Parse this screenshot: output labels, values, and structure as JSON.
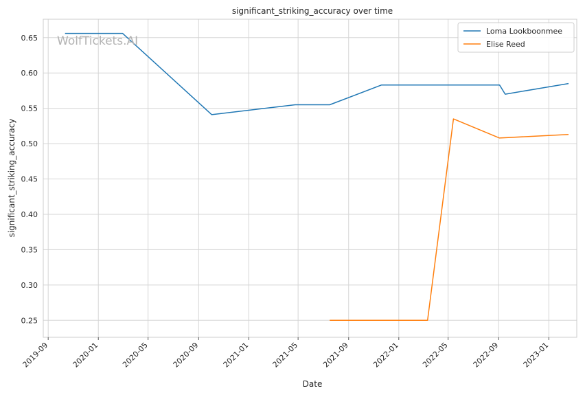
{
  "chart_data": {
    "type": "line",
    "title": "significant_striking_accuracy over time",
    "xlabel": "Date",
    "ylabel": "significant_striking_accuracy",
    "watermark": "WolfTickets.AI",
    "xlim": [
      "2019-08-20",
      "2023-03-10"
    ],
    "ylim": [
      0.226,
      0.676
    ],
    "x_ticks": [
      "2019-09",
      "2020-01",
      "2020-05",
      "2020-09",
      "2021-01",
      "2021-05",
      "2021-09",
      "2022-01",
      "2022-05",
      "2022-09",
      "2023-01"
    ],
    "y_ticks": [
      0.25,
      0.3,
      0.35,
      0.4,
      0.45,
      0.5,
      0.55,
      0.6,
      0.65
    ],
    "y_tick_labels": [
      "0.25",
      "0.30",
      "0.35",
      "0.40",
      "0.45",
      "0.50",
      "0.55",
      "0.60",
      "0.65"
    ],
    "grid": true,
    "legend_position": "top-right",
    "series": [
      {
        "name": "Loma Lookboonmee",
        "color": "#1f77b4",
        "points": [
          {
            "x": "2019-10-12",
            "y": 0.656
          },
          {
            "x": "2020-02-29",
            "y": 0.656
          },
          {
            "x": "2020-10-03",
            "y": 0.541
          },
          {
            "x": "2021-04-24",
            "y": 0.555
          },
          {
            "x": "2021-07-17",
            "y": 0.555
          },
          {
            "x": "2021-11-20",
            "y": 0.583
          },
          {
            "x": "2022-09-03",
            "y": 0.583
          },
          {
            "x": "2022-09-17",
            "y": 0.57
          },
          {
            "x": "2023-02-18",
            "y": 0.585
          }
        ]
      },
      {
        "name": "Elise Reed",
        "color": "#ff7f0e",
        "points": [
          {
            "x": "2021-07-17",
            "y": 0.25
          },
          {
            "x": "2022-03-12",
            "y": 0.25
          },
          {
            "x": "2022-05-14",
            "y": 0.535
          },
          {
            "x": "2022-09-03",
            "y": 0.508
          },
          {
            "x": "2023-02-18",
            "y": 0.513
          }
        ]
      }
    ]
  }
}
